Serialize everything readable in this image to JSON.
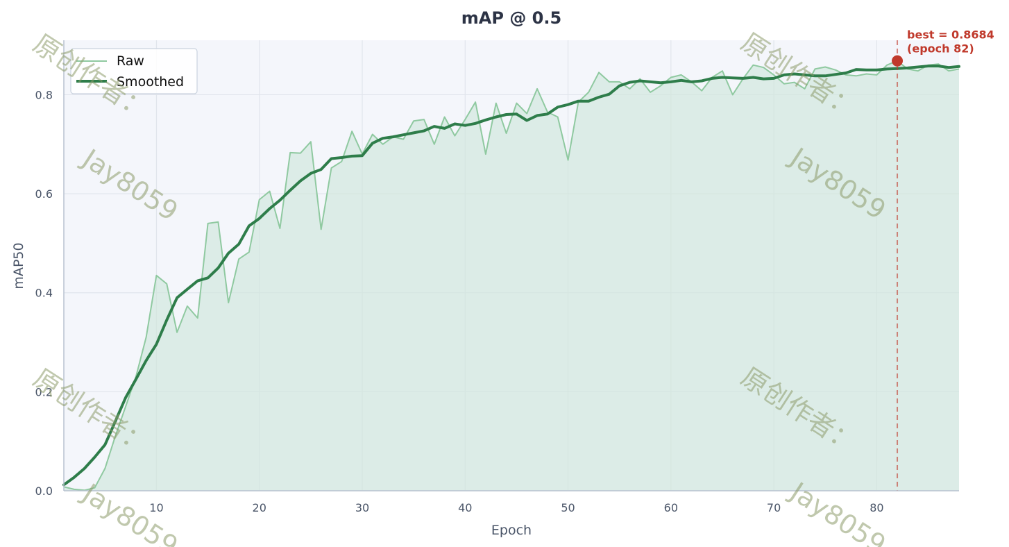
{
  "chart_data": {
    "type": "line",
    "title": "mAP @ 0.5",
    "xlabel": "Epoch",
    "ylabel": "mAP50",
    "xlim": [
      1,
      88
    ],
    "ylim": [
      0,
      0.91
    ],
    "xticks": [
      10,
      20,
      30,
      40,
      50,
      60,
      70,
      80
    ],
    "yticks": [
      0.0,
      0.2,
      0.4,
      0.6,
      0.8
    ],
    "xtick_labels": [
      "10",
      "20",
      "30",
      "40",
      "50",
      "60",
      "70",
      "80"
    ],
    "ytick_labels": [
      "0.0",
      "0.2",
      "0.4",
      "0.6",
      "0.8"
    ],
    "grid": true,
    "legend_position": "top-left",
    "colors": {
      "raw": "#8fc9a0",
      "smoothed": "#2e7d4a",
      "fill": "#cfe6dc",
      "best": "#c0392b",
      "plot_bg": "#f4f6fb",
      "grid": "#e1e5ec"
    },
    "series": [
      {
        "name": "Raw",
        "x": [
          1,
          2,
          3,
          4,
          5,
          6,
          7,
          8,
          9,
          10,
          11,
          12,
          13,
          14,
          15,
          16,
          17,
          18,
          19,
          20,
          21,
          22,
          23,
          24,
          25,
          26,
          27,
          28,
          29,
          30,
          31,
          32,
          33,
          34,
          35,
          36,
          37,
          38,
          39,
          40,
          41,
          42,
          43,
          44,
          45,
          46,
          47,
          48,
          49,
          50,
          51,
          52,
          53,
          54,
          55,
          56,
          57,
          58,
          59,
          60,
          61,
          62,
          63,
          64,
          65,
          66,
          67,
          68,
          69,
          70,
          71,
          72,
          73,
          74,
          75,
          76,
          77,
          78,
          79,
          80,
          81,
          82,
          83,
          84,
          85,
          86,
          87,
          88
        ],
        "values": [
          0.008,
          0.003,
          0.001,
          0.006,
          0.045,
          0.11,
          0.17,
          0.23,
          0.31,
          0.435,
          0.418,
          0.32,
          0.373,
          0.349,
          0.54,
          0.543,
          0.38,
          0.468,
          0.482,
          0.588,
          0.605,
          0.53,
          0.683,
          0.682,
          0.705,
          0.528,
          0.652,
          0.665,
          0.726,
          0.68,
          0.72,
          0.7,
          0.715,
          0.71,
          0.747,
          0.75,
          0.7,
          0.755,
          0.717,
          0.75,
          0.785,
          0.68,
          0.783,
          0.722,
          0.783,
          0.762,
          0.812,
          0.765,
          0.755,
          0.668,
          0.785,
          0.805,
          0.845,
          0.826,
          0.826,
          0.812,
          0.832,
          0.805,
          0.818,
          0.835,
          0.84,
          0.826,
          0.808,
          0.835,
          0.848,
          0.8,
          0.832,
          0.86,
          0.855,
          0.84,
          0.822,
          0.825,
          0.812,
          0.852,
          0.856,
          0.85,
          0.84,
          0.838,
          0.842,
          0.84,
          0.86,
          0.8684,
          0.852,
          0.848,
          0.86,
          0.862,
          0.848,
          0.852
        ]
      },
      {
        "name": "Smoothed",
        "x": [
          1,
          2,
          3,
          4,
          5,
          6,
          7,
          8,
          9,
          10,
          11,
          12,
          13,
          14,
          15,
          16,
          17,
          18,
          19,
          20,
          21,
          22,
          23,
          24,
          25,
          26,
          27,
          28,
          29,
          30,
          31,
          32,
          33,
          34,
          35,
          36,
          37,
          38,
          39,
          40,
          41,
          42,
          43,
          44,
          45,
          46,
          47,
          48,
          49,
          50,
          51,
          52,
          53,
          54,
          55,
          56,
          57,
          58,
          59,
          60,
          61,
          62,
          63,
          64,
          65,
          66,
          67,
          68,
          69,
          70,
          71,
          72,
          73,
          74,
          75,
          76,
          77,
          78,
          79,
          80,
          81,
          82,
          83,
          84,
          85,
          86,
          87,
          88
        ],
        "values": [
          0.012,
          0.027,
          0.045,
          0.068,
          0.093,
          0.14,
          0.188,
          0.225,
          0.263,
          0.296,
          0.345,
          0.39,
          0.407,
          0.424,
          0.43,
          0.45,
          0.48,
          0.498,
          0.535,
          0.55,
          0.57,
          0.587,
          0.607,
          0.626,
          0.641,
          0.649,
          0.671,
          0.673,
          0.676,
          0.677,
          0.702,
          0.712,
          0.715,
          0.719,
          0.723,
          0.727,
          0.736,
          0.732,
          0.741,
          0.738,
          0.742,
          0.749,
          0.755,
          0.76,
          0.761,
          0.748,
          0.758,
          0.761,
          0.775,
          0.78,
          0.787,
          0.787,
          0.795,
          0.801,
          0.818,
          0.825,
          0.828,
          0.826,
          0.824,
          0.826,
          0.829,
          0.826,
          0.828,
          0.833,
          0.835,
          0.834,
          0.833,
          0.835,
          0.832,
          0.833,
          0.84,
          0.842,
          0.84,
          0.838,
          0.838,
          0.841,
          0.844,
          0.851,
          0.85,
          0.85,
          0.852,
          0.853,
          0.854,
          0.856,
          0.858,
          0.858,
          0.855,
          0.857
        ]
      }
    ],
    "best": {
      "epoch": 82,
      "value": 0.8684,
      "label_line1": "best = 0.8684",
      "label_line2": "(epoch 82)"
    }
  },
  "watermark": {
    "text_cn": "原创作者：",
    "text_en": "Jay8059"
  }
}
